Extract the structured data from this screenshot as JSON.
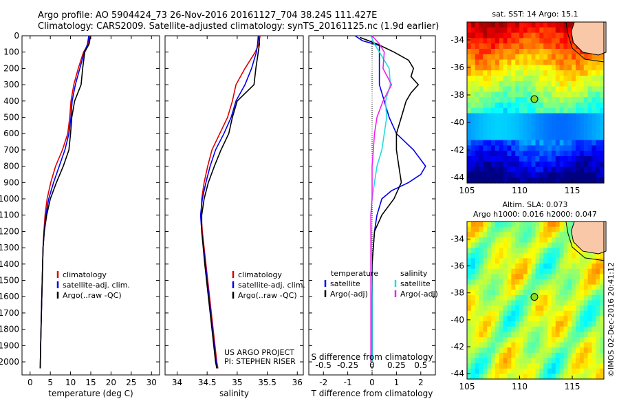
{
  "header": {
    "line1": "Argo profile: AO 5904424_73 26-Nov-2016 20161127_704 38.24S 111.427E",
    "line2": "Climatology: CARS2009. Satellite-adjusted climatology: synTS_20161125.nc (1.9d earlier)"
  },
  "colors": {
    "climatology": "#dd0000",
    "satellite": "#0000ee",
    "argo": "#000000",
    "cyan": "#22dddd",
    "magenta": "#ee22ee",
    "land": "#f8c8a8"
  },
  "chart_data": [
    {
      "type": "line",
      "id": "temperature",
      "xlabel": "temperature (deg C)",
      "ylabel": "",
      "xlim": [
        -2,
        32
      ],
      "ylim": [
        2080,
        0
      ],
      "xticks": [
        0,
        5,
        10,
        15,
        20,
        25,
        30
      ],
      "yticks": [
        0,
        100,
        200,
        300,
        400,
        500,
        600,
        700,
        800,
        900,
        1000,
        1100,
        1200,
        1300,
        1400,
        1500,
        1600,
        1700,
        1800,
        1900,
        2000
      ],
      "legend": [
        "climatology",
        "satellite-adj. clim.",
        "Argo(..raw -QC)"
      ],
      "series": [
        {
          "name": "climatology",
          "color": "#dd0000",
          "depth": [
            0,
            50,
            100,
            200,
            300,
            400,
            500,
            600,
            700,
            800,
            900,
            1000,
            1100,
            1200,
            1300,
            1500,
            1700,
            1900,
            2040
          ],
          "values": [
            14.8,
            14.4,
            13.2,
            11.9,
            10.8,
            10.1,
            9.8,
            9.3,
            8.0,
            6.3,
            5.1,
            4.2,
            3.7,
            3.4,
            3.2,
            3.0,
            2.8,
            2.6,
            2.5
          ]
        },
        {
          "name": "satellite-adj. clim.",
          "color": "#0000ee",
          "depth": [
            0,
            50,
            100,
            200,
            300,
            400,
            500,
            600,
            700,
            800,
            900,
            1000,
            1100,
            1200,
            1300,
            1500,
            1700,
            1900,
            2040
          ],
          "values": [
            14.5,
            14.2,
            13.4,
            12.3,
            11.2,
            10.4,
            10.1,
            9.6,
            8.6,
            7.2,
            5.8,
            4.6,
            3.9,
            3.5,
            3.2,
            3.0,
            2.8,
            2.6,
            2.5
          ]
        },
        {
          "name": "Argo(..raw -QC)",
          "color": "#000000",
          "depth": [
            5,
            50,
            100,
            200,
            300,
            400,
            500,
            600,
            700,
            800,
            900,
            1000,
            1100,
            1200,
            1300,
            1500,
            1700,
            1900,
            2040
          ],
          "values": [
            14.9,
            14.6,
            13.5,
            13.0,
            12.6,
            11.0,
            10.3,
            10.0,
            9.6,
            8.2,
            6.5,
            5.0,
            4.1,
            3.5,
            3.2,
            3.0,
            2.8,
            2.6,
            2.5
          ]
        }
      ]
    },
    {
      "type": "line",
      "id": "salinity",
      "xlabel": "salinity",
      "ylabel": "",
      "xlim": [
        33.8,
        36.1
      ],
      "ylim": [
        2080,
        0
      ],
      "xticks": [
        34,
        34.5,
        35,
        35.5,
        36
      ],
      "legend": [
        "climatology",
        "satellite-adj. clim.",
        "Argo(..raw -QC)"
      ],
      "series": [
        {
          "name": "climatology",
          "color": "#dd0000",
          "depth": [
            0,
            50,
            100,
            200,
            300,
            400,
            500,
            600,
            700,
            800,
            900,
            1000,
            1100,
            1200,
            1400,
            1600,
            1800,
            2000,
            2040
          ],
          "values": [
            35.38,
            35.36,
            35.3,
            35.13,
            34.98,
            34.92,
            34.84,
            34.71,
            34.58,
            34.51,
            34.45,
            34.41,
            34.4,
            34.42,
            34.48,
            34.54,
            34.6,
            34.66,
            34.68
          ]
        },
        {
          "name": "satellite-adj. clim.",
          "color": "#0000ee",
          "depth": [
            0,
            50,
            100,
            200,
            300,
            400,
            500,
            600,
            700,
            800,
            900,
            1000,
            1100,
            1200,
            1400,
            1600,
            1800,
            2000,
            2040
          ],
          "values": [
            35.35,
            35.34,
            35.32,
            35.24,
            35.13,
            34.98,
            34.9,
            34.78,
            34.64,
            34.55,
            34.48,
            34.42,
            34.39,
            34.41,
            34.47,
            34.53,
            34.59,
            34.65,
            34.67
          ]
        },
        {
          "name": "Argo(..raw -QC)",
          "color": "#000000",
          "depth": [
            5,
            50,
            100,
            200,
            300,
            400,
            500,
            600,
            700,
            800,
            900,
            1000,
            1100,
            1200,
            1400,
            1600,
            1800,
            2000,
            2040
          ],
          "values": [
            35.36,
            35.37,
            35.35,
            35.31,
            35.28,
            35.0,
            34.92,
            34.86,
            34.73,
            34.62,
            34.52,
            34.45,
            34.41,
            34.41,
            34.46,
            34.52,
            34.58,
            34.64,
            34.66
          ]
        }
      ],
      "annotations": [
        "US ARGO PROJECT",
        "PI: STEPHEN RISER"
      ]
    },
    {
      "type": "line",
      "id": "difference",
      "xlabel": "T difference from climatology",
      "xlabel2": "S difference from climatology",
      "xlim": [
        -2.6,
        2.6
      ],
      "ylim": [
        2080,
        0
      ],
      "xticks": [
        -2,
        -1,
        0,
        1,
        2
      ],
      "xtick_labels": [
        "-2",
        "-1",
        "0",
        "1",
        "2"
      ],
      "top_ticks": [
        -0.5,
        -0.25,
        0,
        0.25,
        0.5
      ],
      "top_tick_labels": [
        "-0.5",
        "-0.25",
        "0",
        "0.25",
        "0.5"
      ],
      "legend_titles": [
        "temperature",
        "salinity"
      ],
      "legend": [
        "satellite",
        "Argo(-adj)",
        "satellite",
        "Argo(-adj)"
      ],
      "series": [
        {
          "name": "temperature satellite",
          "color": "#0000ee",
          "depth": [
            0,
            30,
            60,
            100,
            150,
            200,
            300,
            400,
            500,
            600,
            700,
            800,
            850,
            900,
            950,
            1000,
            1100,
            1200,
            1400,
            1600,
            1800,
            2000
          ],
          "values": [
            -0.7,
            -0.4,
            0.3,
            0.3,
            0.3,
            0.3,
            0.3,
            0.5,
            0.7,
            1.0,
            1.7,
            2.2,
            2.0,
            1.5,
            0.8,
            0.4,
            0.2,
            0.1,
            0.0,
            0.0,
            0.0,
            0.0
          ]
        },
        {
          "name": "temperature Argo(-adj)",
          "color": "#000000",
          "depth": [
            10,
            50,
            100,
            150,
            200,
            250,
            300,
            350,
            400,
            500,
            600,
            700,
            800,
            900,
            1000,
            1100,
            1200,
            1400,
            1600,
            1800,
            2000
          ],
          "values": [
            -0.5,
            0.2,
            0.9,
            1.5,
            1.7,
            1.6,
            1.9,
            1.6,
            1.4,
            1.2,
            1.0,
            1.0,
            1.1,
            1.2,
            0.9,
            0.4,
            0.1,
            0.0,
            0.0,
            0.0,
            0.0
          ]
        },
        {
          "name": "salinity satellite",
          "color": "#22dddd",
          "depth": [
            0,
            50,
            100,
            200,
            300,
            400,
            500,
            600,
            700,
            800,
            900,
            1000,
            1100,
            1200,
            1400,
            1600,
            1800,
            2000
          ],
          "values": [
            -0.05,
            0.1,
            0.3,
            0.7,
            0.75,
            0.55,
            0.6,
            0.5,
            0.4,
            0.2,
            0.1,
            0.0,
            -0.05,
            -0.03,
            -0.02,
            0.0,
            0.0,
            0.0
          ]
        },
        {
          "name": "salinity Argo(-adj)",
          "color": "#ee22ee",
          "depth": [
            0,
            50,
            100,
            200,
            300,
            400,
            500,
            600,
            700,
            800,
            900,
            1000,
            1100,
            1200,
            1400,
            1600,
            1800,
            2000
          ],
          "values": [
            0.0,
            0.3,
            0.5,
            0.45,
            0.8,
            0.45,
            0.2,
            0.1,
            0.05,
            0.0,
            0.0,
            0.0,
            -0.05,
            -0.05,
            -0.05,
            -0.05,
            -0.05,
            -0.05
          ]
        }
      ]
    },
    {
      "type": "heatmap",
      "id": "sst-map",
      "title": "sat. SST: 14 Argo: 15.1",
      "xticks": [
        105,
        110,
        115
      ],
      "yticks": [
        -34,
        -36,
        -38,
        -40,
        -42,
        -44
      ],
      "xlim": [
        105,
        118
      ],
      "ylim": [
        -44.4,
        -32.7
      ],
      "profile_point": {
        "lon": 111.4,
        "lat": -38.3
      }
    },
    {
      "type": "heatmap",
      "id": "sla-map",
      "title": "Altim. SLA: 0.073",
      "subtitle": "Argo h1000: 0.016 h2000: 0.047",
      "xticks": [
        105,
        110,
        115
      ],
      "yticks": [
        -34,
        -36,
        -38,
        -40,
        -42,
        -44
      ],
      "xlim": [
        105,
        118
      ],
      "ylim": [
        -44.4,
        -32.7
      ],
      "profile_point": {
        "lon": 111.4,
        "lat": -38.3
      }
    }
  ],
  "credit": "©IMOS 02-Dec-2016 20:41:12"
}
